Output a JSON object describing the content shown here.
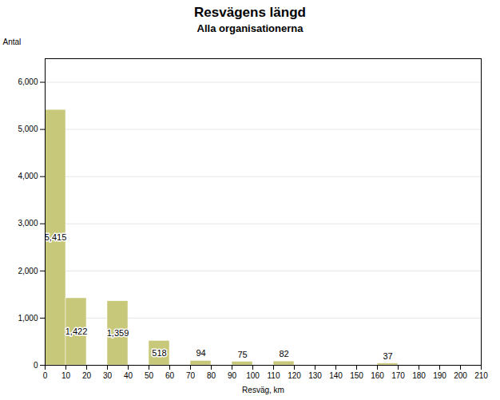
{
  "chart_data": {
    "type": "bar",
    "title": "Resvägens längd",
    "subtitle": "Alla organisationerna",
    "xlabel": "Resväg, km",
    "ylabel": "Antal",
    "x": [
      0,
      10,
      30,
      50,
      70,
      90,
      110,
      160
    ],
    "widths": [
      10,
      10,
      10,
      10,
      10,
      10,
      10,
      10
    ],
    "values": [
      5415,
      1422,
      1359,
      518,
      94,
      75,
      82,
      37
    ],
    "value_labels": [
      "5,415",
      "1,422",
      "1,359",
      "518",
      "94",
      "75",
      "82",
      "37"
    ],
    "data_labels": true,
    "color": "#c8c87a",
    "xlim": [
      0,
      210
    ],
    "xticks": [
      0,
      10,
      20,
      30,
      40,
      50,
      60,
      70,
      80,
      90,
      100,
      110,
      120,
      130,
      140,
      150,
      160,
      170,
      180,
      190,
      200,
      210
    ],
    "ylim": [
      0,
      6500
    ],
    "yticks": [
      0,
      {
        "value": 1000,
        "label": "1,000"
      },
      {
        "value": 2000,
        "label": "2,000"
      },
      {
        "value": 3000,
        "label": "3,000"
      },
      {
        "value": 4000,
        "label": "4,000"
      },
      {
        "value": 5000,
        "label": "5,000"
      },
      {
        "value": 6000,
        "label": "6,000"
      }
    ],
    "grid": true
  }
}
